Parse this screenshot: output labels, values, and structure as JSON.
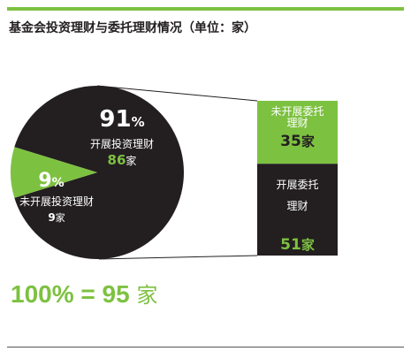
{
  "title": "基金会投资理财与委托理财情况（单位：家）",
  "colors": {
    "accent": "#7dc141",
    "dark": "#231f20",
    "text": "#ffffff"
  },
  "chart_data": [
    {
      "type": "pie",
      "slices": [
        {
          "name": "开展投资理财",
          "value": 86,
          "percent_label": "91",
          "pct_sign": "%",
          "count_unit": "家",
          "color": "#231f20"
        },
        {
          "name": "未开展投资理财",
          "value": 9,
          "percent_label": "9",
          "pct_sign": "%",
          "count_unit": "家",
          "color": "#7dc141"
        }
      ]
    },
    {
      "type": "bar",
      "stacked": true,
      "segments": [
        {
          "name_lines": [
            "未开展委托",
            "理财"
          ],
          "value": 35,
          "unit": "家",
          "color": "#7dc141"
        },
        {
          "name_lines": [
            "开展委托",
            "理财"
          ],
          "value": 51,
          "unit": "家",
          "color": "#231f20"
        }
      ]
    }
  ],
  "total": {
    "text": "100% = 95",
    "unit": "家"
  }
}
